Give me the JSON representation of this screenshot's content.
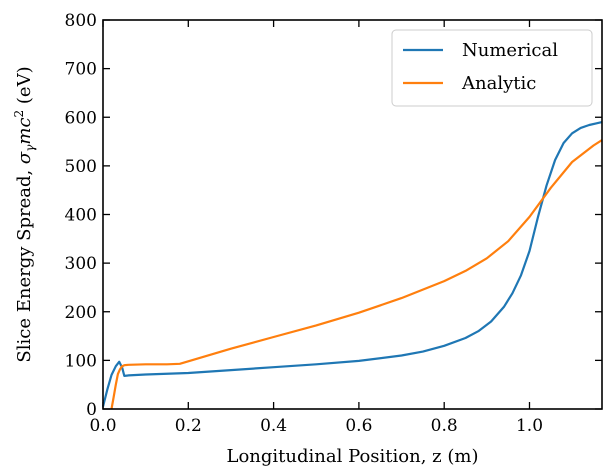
{
  "chart_data": {
    "type": "line",
    "xlabel": "Longitudinal Position, z (m)",
    "ylabel_prefix": "Slice Energy Spread, ",
    "ylabel_math": "σ",
    "ylabel_sub": "γ",
    "ylabel_mc": "mc",
    "ylabel_sup": "2",
    "ylabel_unit": " (eV)",
    "xlim": [
      0.0,
      1.17
    ],
    "ylim": [
      0,
      800
    ],
    "xticks": [
      0.0,
      0.2,
      0.4,
      0.6,
      0.8,
      1.0
    ],
    "xtick_labels": [
      "0.0",
      "0.2",
      "0.4",
      "0.6",
      "0.8",
      "1.0"
    ],
    "yticks": [
      0,
      100,
      200,
      300,
      400,
      500,
      600,
      700,
      800
    ],
    "ytick_labels": [
      "0",
      "100",
      "200",
      "300",
      "400",
      "500",
      "600",
      "700",
      "800"
    ],
    "grid": false,
    "legend_position": "top-right",
    "series": [
      {
        "name": "Numerical",
        "color": "#1f77b4",
        "x": [
          0.0,
          0.01,
          0.02,
          0.03,
          0.038,
          0.045,
          0.05,
          0.06,
          0.1,
          0.2,
          0.3,
          0.4,
          0.5,
          0.6,
          0.7,
          0.75,
          0.8,
          0.85,
          0.88,
          0.91,
          0.94,
          0.96,
          0.98,
          1.0,
          1.02,
          1.04,
          1.06,
          1.08,
          1.1,
          1.12,
          1.14,
          1.16,
          1.17
        ],
        "y": [
          5,
          40,
          70,
          88,
          97,
          85,
          68,
          69,
          71,
          74,
          80,
          86,
          92,
          99,
          110,
          118,
          130,
          146,
          160,
          180,
          210,
          238,
          275,
          325,
          395,
          460,
          512,
          547,
          567,
          578,
          584,
          588,
          590
        ]
      },
      {
        "name": "Analytic",
        "color": "#ff7f0e",
        "x": [
          0.02,
          0.025,
          0.03,
          0.035,
          0.04,
          0.045,
          0.05,
          0.06,
          0.1,
          0.15,
          0.18,
          0.2,
          0.3,
          0.4,
          0.5,
          0.6,
          0.7,
          0.8,
          0.85,
          0.9,
          0.95,
          1.0,
          1.05,
          1.1,
          1.15,
          1.17
        ],
        "y": [
          0,
          25,
          50,
          72,
          82,
          88,
          90,
          91,
          92,
          92,
          93,
          98,
          124,
          148,
          172,
          198,
          228,
          263,
          284,
          310,
          345,
          395,
          455,
          508,
          542,
          553
        ]
      }
    ]
  }
}
